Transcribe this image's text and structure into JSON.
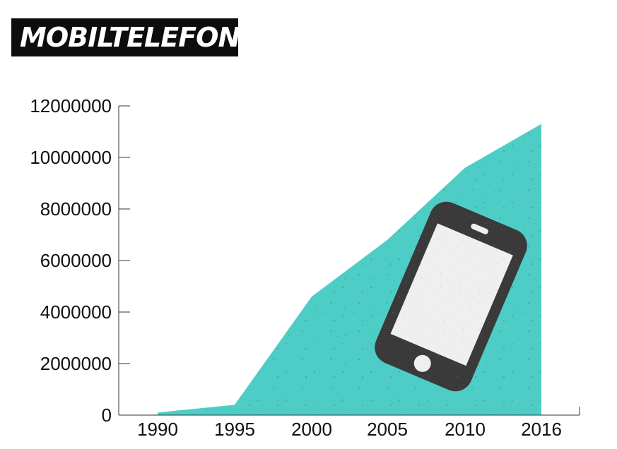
{
  "title": "MOBILTELEFONE",
  "colors": {
    "area": "#4ecdc6",
    "speckle": "#2b8f8a",
    "phone_body": "#3a3a3a",
    "phone_screen": "#efefef",
    "axis": "#333333",
    "title_bg": "#0d0d0d"
  },
  "icons": [
    "smartphone-icon"
  ],
  "chart_data": {
    "type": "area",
    "title": "MOBILTELEFONE",
    "xlabel": "",
    "ylabel": "",
    "x": [
      1990,
      1995,
      2000,
      2005,
      2010,
      2016
    ],
    "series": [
      {
        "values": [
          100000,
          400000,
          4600000,
          6800000,
          9600000,
          11300000
        ]
      }
    ],
    "x_ticks": [
      "1990",
      "1995",
      "2000",
      "2005",
      "2010",
      "2016"
    ],
    "y_ticks": [
      "0",
      "2000000",
      "4000000",
      "6000000",
      "8000000",
      "10000000",
      "12000000"
    ],
    "ylim": [
      0,
      12000000
    ],
    "grid": false,
    "legend": "none"
  }
}
